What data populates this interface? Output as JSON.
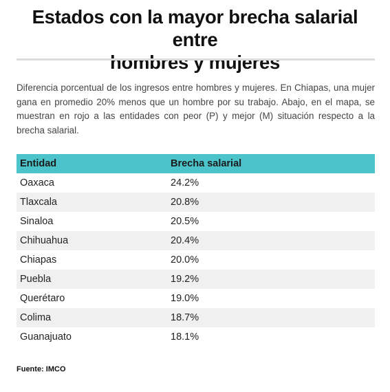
{
  "title_line1": "Estados con la mayor brecha salarial entre",
  "title_line2": "hombres y mujeres",
  "description": "Diferencia porcentual de los ingresos entre hombres y mujeres. En Chiapas, una mujer gana en promedio 20% menos que un hombre por su trabajo. Abajo, en el mapa, se muestran en rojo a las entidades con peor (P) y mejor (M) situación respecto a la brecha salarial.",
  "table": {
    "header_color": "#4cc3cb",
    "columns": [
      "Entidad",
      "Brecha salarial"
    ],
    "rows": [
      {
        "entidad": "Oaxaca",
        "brecha": "24.2%"
      },
      {
        "entidad": "Tlaxcala",
        "brecha": "20.8%"
      },
      {
        "entidad": "Sinaloa",
        "brecha": "20.5%"
      },
      {
        "entidad": "Chihuahua",
        "brecha": "20.4%"
      },
      {
        "entidad": "Chiapas",
        "brecha": "20.0%"
      },
      {
        "entidad": "Puebla",
        "brecha": "19.2%"
      },
      {
        "entidad": "Querétaro",
        "brecha": "19.0%"
      },
      {
        "entidad": "Colima",
        "brecha": "18.7%"
      },
      {
        "entidad": "Guanajuato",
        "brecha": "18.1%"
      }
    ]
  },
  "source": "Fuente: IMCO"
}
